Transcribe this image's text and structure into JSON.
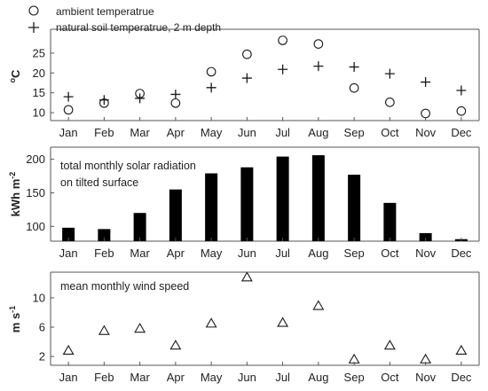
{
  "chart_data": [
    {
      "type": "scatter",
      "ylabel": "°C",
      "ylim": [
        8,
        31
      ],
      "yticks": [
        10,
        15,
        20,
        25
      ],
      "categories": [
        "Jan",
        "Feb",
        "Mar",
        "Apr",
        "May",
        "Jun",
        "Jul",
        "Aug",
        "Sep",
        "Oct",
        "Nov",
        "Dec"
      ],
      "series": [
        {
          "name": "ambient temperatrue",
          "marker": "circle",
          "values": [
            10.7,
            12.4,
            14.8,
            12.4,
            20.3,
            24.7,
            28.2,
            27.3,
            16.2,
            12.6,
            9.8,
            10.4
          ]
        },
        {
          "name": "natural soil temperatrue, 2 m depth",
          "marker": "plus",
          "values": [
            14.0,
            13.2,
            13.6,
            14.6,
            16.3,
            18.7,
            20.9,
            21.7,
            21.5,
            19.8,
            17.7,
            15.6
          ]
        }
      ]
    },
    {
      "type": "bar",
      "ylabel": "kWh m-2",
      "ylim": [
        78,
        218
      ],
      "yticks": [
        100,
        150,
        200
      ],
      "annotation": [
        "total monthly solar radiation",
        "on tilted surface"
      ],
      "categories": [
        "Jan",
        "Feb",
        "Mar",
        "Apr",
        "May",
        "Jun",
        "Jul",
        "Aug",
        "Sep",
        "Oct",
        "Nov",
        "Dec"
      ],
      "values": [
        98,
        96,
        120,
        155,
        179,
        188,
        204,
        206,
        177,
        135,
        90,
        81
      ]
    },
    {
      "type": "scatter",
      "ylabel": "m s-1",
      "ylim": [
        0.8,
        13.5
      ],
      "yticks": [
        2,
        6,
        10
      ],
      "annotation": "mean monthly wind speed",
      "categories": [
        "Jan",
        "Feb",
        "Mar",
        "Apr",
        "May",
        "Jun",
        "Jul",
        "Aug",
        "Sep",
        "Oct",
        "Nov",
        "Dec"
      ],
      "series": [
        {
          "marker": "triangle",
          "values": [
            2.8,
            5.5,
            5.8,
            3.5,
            6.5,
            12.8,
            6.6,
            8.9,
            1.6,
            3.5,
            1.6,
            2.8
          ]
        }
      ]
    }
  ],
  "colors": {
    "marker": "#1a1a1a",
    "bar": "#000000",
    "axis": "#555555"
  }
}
